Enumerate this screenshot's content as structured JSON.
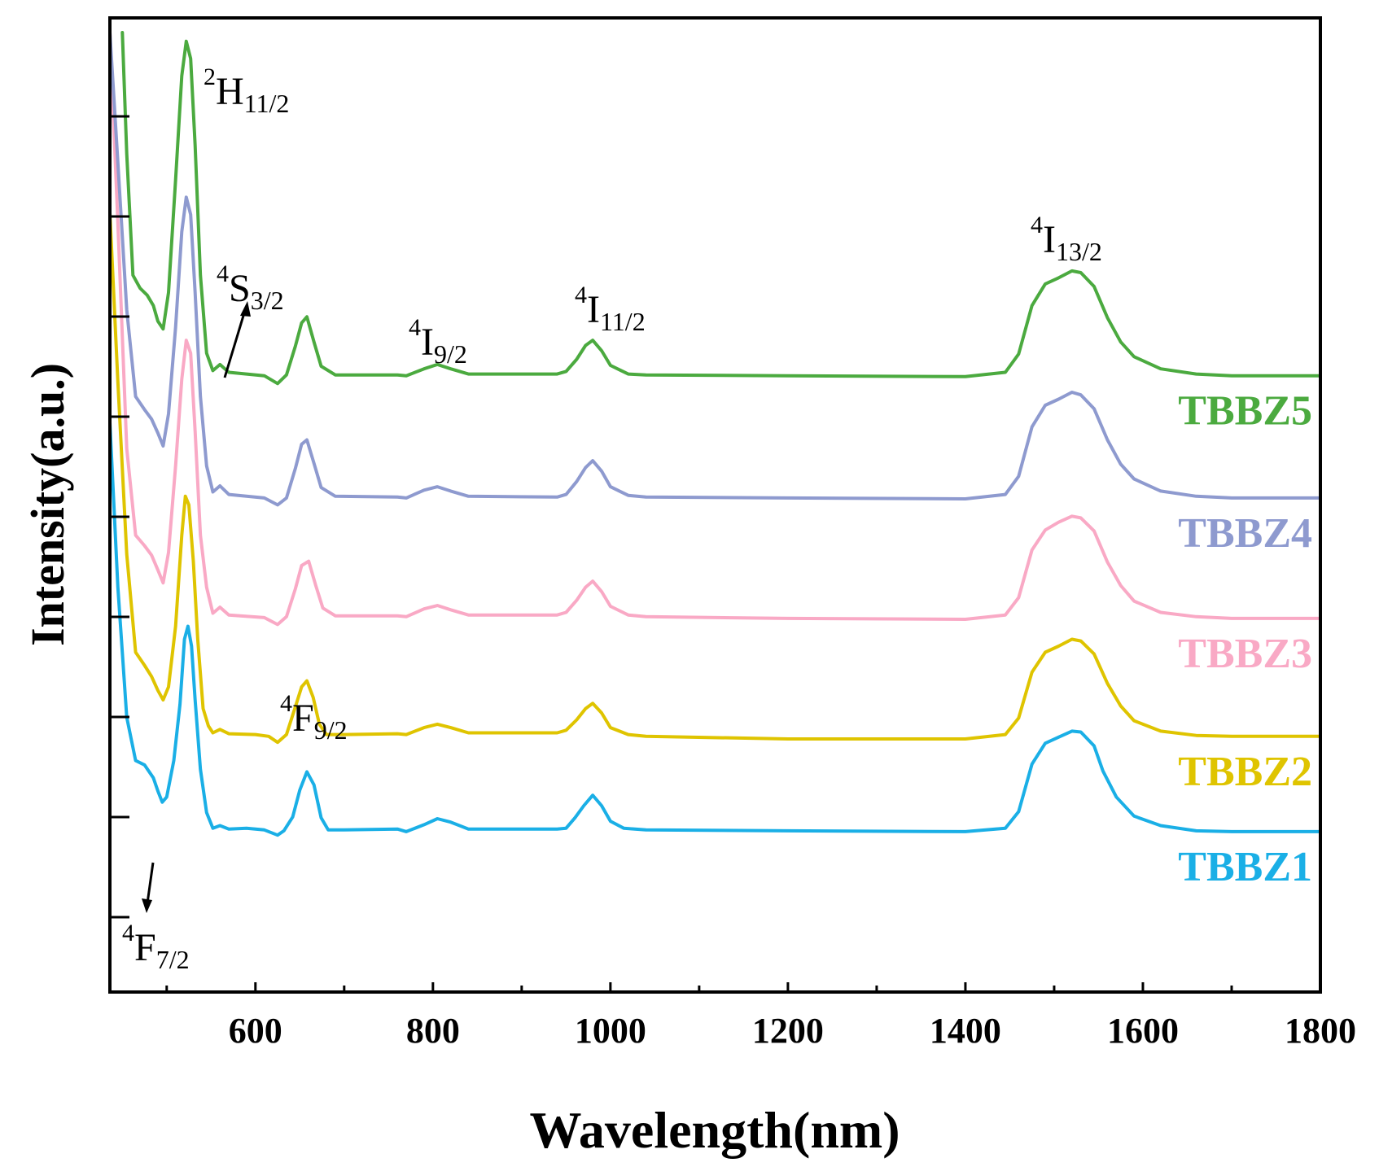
{
  "chart_data": {
    "type": "line",
    "xlabel": "Wavelength(nm)",
    "ylabel": "Intensity(a.u.)",
    "xlim": [
      436,
      1800
    ],
    "ylim": [
      0,
      1.0
    ],
    "x_ticks": [
      600,
      800,
      1000,
      1200,
      1400,
      1600,
      1800
    ],
    "y_ticks_labeled": false,
    "grid": false,
    "legend": "inline labels at right, under each curve",
    "series": [
      {
        "name": "TBBZ1",
        "color": "#1AAFE6",
        "points": [
          [
            436,
            0.55
          ],
          [
            445,
            0.36
          ],
          [
            455,
            0.21
          ],
          [
            465,
            0.16
          ],
          [
            475,
            0.155
          ],
          [
            485,
            0.14
          ],
          [
            490,
            0.125
          ],
          [
            495,
            0.112
          ],
          [
            500,
            0.118
          ],
          [
            508,
            0.16
          ],
          [
            515,
            0.225
          ],
          [
            520,
            0.3
          ],
          [
            524,
            0.315
          ],
          [
            528,
            0.292
          ],
          [
            532,
            0.23
          ],
          [
            538,
            0.15
          ],
          [
            545,
            0.1
          ],
          [
            552,
            0.082
          ],
          [
            560,
            0.085
          ],
          [
            570,
            0.081
          ],
          [
            590,
            0.082
          ],
          [
            610,
            0.08
          ],
          [
            625,
            0.074
          ],
          [
            632,
            0.079
          ],
          [
            642,
            0.095
          ],
          [
            650,
            0.126
          ],
          [
            658,
            0.147
          ],
          [
            666,
            0.132
          ],
          [
            674,
            0.094
          ],
          [
            682,
            0.08
          ],
          [
            700,
            0.08
          ],
          [
            760,
            0.081
          ],
          [
            770,
            0.078
          ],
          [
            790,
            0.086
          ],
          [
            805,
            0.093
          ],
          [
            820,
            0.089
          ],
          [
            840,
            0.081
          ],
          [
            900,
            0.081
          ],
          [
            940,
            0.081
          ],
          [
            950,
            0.082
          ],
          [
            960,
            0.094
          ],
          [
            970,
            0.108
          ],
          [
            980,
            0.12
          ],
          [
            990,
            0.108
          ],
          [
            1000,
            0.09
          ],
          [
            1015,
            0.082
          ],
          [
            1040,
            0.08
          ],
          [
            1200,
            0.079
          ],
          [
            1400,
            0.078
          ],
          [
            1445,
            0.082
          ],
          [
            1460,
            0.101
          ],
          [
            1475,
            0.156
          ],
          [
            1490,
            0.18
          ],
          [
            1505,
            0.187
          ],
          [
            1520,
            0.194
          ],
          [
            1530,
            0.193
          ],
          [
            1545,
            0.177
          ],
          [
            1555,
            0.148
          ],
          [
            1570,
            0.118
          ],
          [
            1590,
            0.096
          ],
          [
            1620,
            0.085
          ],
          [
            1660,
            0.079
          ],
          [
            1700,
            0.078
          ],
          [
            1800,
            0.078
          ]
        ]
      },
      {
        "name": "TBBZ2",
        "color": "#DFC400",
        "points": [
          [
            436,
            0.792
          ],
          [
            445,
            0.597
          ],
          [
            455,
            0.398
          ],
          [
            465,
            0.285
          ],
          [
            475,
            0.27
          ],
          [
            483,
            0.257
          ],
          [
            490,
            0.241
          ],
          [
            496,
            0.23
          ],
          [
            502,
            0.245
          ],
          [
            510,
            0.315
          ],
          [
            517,
            0.42
          ],
          [
            521,
            0.465
          ],
          [
            525,
            0.455
          ],
          [
            530,
            0.39
          ],
          [
            535,
            0.3
          ],
          [
            541,
            0.22
          ],
          [
            547,
            0.2
          ],
          [
            552,
            0.192
          ],
          [
            560,
            0.196
          ],
          [
            570,
            0.191
          ],
          [
            600,
            0.19
          ],
          [
            615,
            0.188
          ],
          [
            625,
            0.181
          ],
          [
            635,
            0.19
          ],
          [
            645,
            0.222
          ],
          [
            652,
            0.245
          ],
          [
            658,
            0.252
          ],
          [
            665,
            0.233
          ],
          [
            672,
            0.202
          ],
          [
            680,
            0.19
          ],
          [
            700,
            0.19
          ],
          [
            760,
            0.191
          ],
          [
            770,
            0.19
          ],
          [
            790,
            0.198
          ],
          [
            805,
            0.202
          ],
          [
            820,
            0.198
          ],
          [
            840,
            0.192
          ],
          [
            940,
            0.192
          ],
          [
            950,
            0.195
          ],
          [
            962,
            0.207
          ],
          [
            972,
            0.22
          ],
          [
            980,
            0.226
          ],
          [
            990,
            0.215
          ],
          [
            1000,
            0.198
          ],
          [
            1020,
            0.19
          ],
          [
            1040,
            0.188
          ],
          [
            1200,
            0.185
          ],
          [
            1400,
            0.185
          ],
          [
            1445,
            0.19
          ],
          [
            1460,
            0.209
          ],
          [
            1475,
            0.262
          ],
          [
            1490,
            0.285
          ],
          [
            1505,
            0.292
          ],
          [
            1520,
            0.3
          ],
          [
            1530,
            0.298
          ],
          [
            1545,
            0.283
          ],
          [
            1560,
            0.249
          ],
          [
            1575,
            0.223
          ],
          [
            1590,
            0.206
          ],
          [
            1620,
            0.194
          ],
          [
            1660,
            0.189
          ],
          [
            1700,
            0.188
          ],
          [
            1800,
            0.188
          ]
        ]
      },
      {
        "name": "TBBZ3",
        "color": "#F9A9C5",
        "points": [
          [
            436,
            1.0
          ],
          [
            445,
            0.78
          ],
          [
            455,
            0.52
          ],
          [
            465,
            0.42
          ],
          [
            475,
            0.408
          ],
          [
            483,
            0.397
          ],
          [
            490,
            0.38
          ],
          [
            496,
            0.365
          ],
          [
            502,
            0.4
          ],
          [
            510,
            0.5
          ],
          [
            517,
            0.6
          ],
          [
            522,
            0.645
          ],
          [
            527,
            0.63
          ],
          [
            532,
            0.54
          ],
          [
            538,
            0.42
          ],
          [
            545,
            0.36
          ],
          [
            552,
            0.33
          ],
          [
            560,
            0.337
          ],
          [
            570,
            0.328
          ],
          [
            610,
            0.325
          ],
          [
            625,
            0.317
          ],
          [
            635,
            0.326
          ],
          [
            645,
            0.358
          ],
          [
            652,
            0.385
          ],
          [
            660,
            0.39
          ],
          [
            668,
            0.362
          ],
          [
            676,
            0.336
          ],
          [
            690,
            0.327
          ],
          [
            760,
            0.327
          ],
          [
            770,
            0.326
          ],
          [
            790,
            0.335
          ],
          [
            805,
            0.339
          ],
          [
            820,
            0.334
          ],
          [
            840,
            0.328
          ],
          [
            940,
            0.328
          ],
          [
            950,
            0.331
          ],
          [
            962,
            0.345
          ],
          [
            972,
            0.36
          ],
          [
            980,
            0.367
          ],
          [
            990,
            0.355
          ],
          [
            1000,
            0.338
          ],
          [
            1020,
            0.328
          ],
          [
            1040,
            0.326
          ],
          [
            1200,
            0.324
          ],
          [
            1400,
            0.323
          ],
          [
            1445,
            0.328
          ],
          [
            1460,
            0.348
          ],
          [
            1475,
            0.403
          ],
          [
            1490,
            0.426
          ],
          [
            1505,
            0.435
          ],
          [
            1520,
            0.442
          ],
          [
            1530,
            0.44
          ],
          [
            1545,
            0.425
          ],
          [
            1560,
            0.389
          ],
          [
            1575,
            0.362
          ],
          [
            1590,
            0.344
          ],
          [
            1620,
            0.331
          ],
          [
            1660,
            0.326
          ],
          [
            1700,
            0.324
          ],
          [
            1800,
            0.324
          ]
        ]
      },
      {
        "name": "TBBZ4",
        "color": "#8E9ACF",
        "points": [
          [
            436,
            1.0
          ],
          [
            445,
            0.85
          ],
          [
            455,
            0.68
          ],
          [
            465,
            0.58
          ],
          [
            475,
            0.565
          ],
          [
            483,
            0.554
          ],
          [
            490,
            0.538
          ],
          [
            496,
            0.523
          ],
          [
            502,
            0.56
          ],
          [
            510,
            0.66
          ],
          [
            517,
            0.77
          ],
          [
            522,
            0.81
          ],
          [
            527,
            0.79
          ],
          [
            532,
            0.7
          ],
          [
            538,
            0.58
          ],
          [
            545,
            0.5
          ],
          [
            552,
            0.47
          ],
          [
            560,
            0.477
          ],
          [
            570,
            0.467
          ],
          [
            610,
            0.463
          ],
          [
            625,
            0.455
          ],
          [
            635,
            0.463
          ],
          [
            645,
            0.497
          ],
          [
            652,
            0.525
          ],
          [
            658,
            0.53
          ],
          [
            666,
            0.503
          ],
          [
            674,
            0.475
          ],
          [
            690,
            0.465
          ],
          [
            760,
            0.464
          ],
          [
            770,
            0.463
          ],
          [
            790,
            0.472
          ],
          [
            805,
            0.476
          ],
          [
            820,
            0.471
          ],
          [
            840,
            0.465
          ],
          [
            940,
            0.464
          ],
          [
            950,
            0.467
          ],
          [
            962,
            0.482
          ],
          [
            972,
            0.498
          ],
          [
            980,
            0.506
          ],
          [
            990,
            0.494
          ],
          [
            1000,
            0.476
          ],
          [
            1020,
            0.466
          ],
          [
            1040,
            0.464
          ],
          [
            1200,
            0.463
          ],
          [
            1400,
            0.462
          ],
          [
            1445,
            0.467
          ],
          [
            1460,
            0.488
          ],
          [
            1475,
            0.545
          ],
          [
            1490,
            0.57
          ],
          [
            1505,
            0.577
          ],
          [
            1520,
            0.585
          ],
          [
            1530,
            0.582
          ],
          [
            1545,
            0.566
          ],
          [
            1560,
            0.53
          ],
          [
            1575,
            0.502
          ],
          [
            1590,
            0.485
          ],
          [
            1620,
            0.471
          ],
          [
            1660,
            0.465
          ],
          [
            1700,
            0.463
          ],
          [
            1800,
            0.463
          ]
        ]
      },
      {
        "name": "TBBZ5",
        "color": "#4BAA3F",
        "points": [
          [
            450,
            1.0
          ],
          [
            455,
            0.86
          ],
          [
            462,
            0.72
          ],
          [
            470,
            0.705
          ],
          [
            478,
            0.697
          ],
          [
            485,
            0.685
          ],
          [
            490,
            0.667
          ],
          [
            496,
            0.658
          ],
          [
            502,
            0.7
          ],
          [
            510,
            0.83
          ],
          [
            517,
            0.95
          ],
          [
            522,
            0.99
          ],
          [
            527,
            0.97
          ],
          [
            532,
            0.87
          ],
          [
            538,
            0.72
          ],
          [
            545,
            0.63
          ],
          [
            552,
            0.61
          ],
          [
            560,
            0.617
          ],
          [
            570,
            0.608
          ],
          [
            610,
            0.604
          ],
          [
            625,
            0.595
          ],
          [
            635,
            0.605
          ],
          [
            645,
            0.638
          ],
          [
            652,
            0.665
          ],
          [
            658,
            0.672
          ],
          [
            666,
            0.643
          ],
          [
            674,
            0.615
          ],
          [
            690,
            0.605
          ],
          [
            760,
            0.605
          ],
          [
            770,
            0.604
          ],
          [
            790,
            0.612
          ],
          [
            805,
            0.617
          ],
          [
            820,
            0.612
          ],
          [
            840,
            0.606
          ],
          [
            940,
            0.606
          ],
          [
            950,
            0.609
          ],
          [
            962,
            0.623
          ],
          [
            972,
            0.639
          ],
          [
            980,
            0.645
          ],
          [
            990,
            0.633
          ],
          [
            1000,
            0.616
          ],
          [
            1020,
            0.606
          ],
          [
            1040,
            0.605
          ],
          [
            1200,
            0.604
          ],
          [
            1400,
            0.603
          ],
          [
            1445,
            0.608
          ],
          [
            1460,
            0.629
          ],
          [
            1475,
            0.685
          ],
          [
            1490,
            0.71
          ],
          [
            1505,
            0.717
          ],
          [
            1520,
            0.725
          ],
          [
            1530,
            0.723
          ],
          [
            1545,
            0.707
          ],
          [
            1560,
            0.671
          ],
          [
            1575,
            0.643
          ],
          [
            1590,
            0.626
          ],
          [
            1620,
            0.612
          ],
          [
            1660,
            0.606
          ],
          [
            1700,
            0.604
          ],
          [
            1800,
            0.604
          ]
        ]
      }
    ],
    "annotations": [
      {
        "main": "H",
        "sup": "2",
        "sub": "11/2"
      },
      {
        "main": "S",
        "sup": "4",
        "sub": "3/2"
      },
      {
        "main": "F",
        "sup": "4",
        "sub": "9/2"
      },
      {
        "main": "I",
        "sup": "4",
        "sub": "9/2"
      },
      {
        "main": "I",
        "sup": "4",
        "sub": "11/2"
      },
      {
        "main": "I",
        "sup": "4",
        "sub": "13/2"
      },
      {
        "main": "F",
        "sup": "4",
        "sub": "7/2"
      }
    ]
  }
}
